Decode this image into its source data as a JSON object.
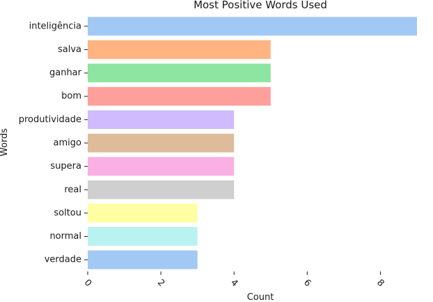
{
  "chart_data": {
    "type": "bar",
    "orientation": "horizontal",
    "title": "Most Positive Words Used",
    "xlabel": "Count",
    "ylabel": "Words",
    "categories": [
      "inteligência",
      "salva",
      "ganhar",
      "bom",
      "produtividade",
      "amigo",
      "supera",
      "real",
      "soltou",
      "normal",
      "verdade"
    ],
    "values": [
      9,
      5,
      5,
      5,
      4,
      4,
      4,
      4,
      3,
      3,
      3
    ],
    "colors": [
      "#a1c9f4",
      "#ffb482",
      "#8de5a1",
      "#ff9f9b",
      "#d0bbff",
      "#debb9b",
      "#fab0e4",
      "#cfcfcf",
      "#fffea3",
      "#b9f2f0",
      "#a1c9f4"
    ],
    "xlim": [
      0,
      9
    ],
    "xticks": [
      0,
      2,
      4,
      6,
      8
    ],
    "grid": false,
    "legend": "none"
  }
}
